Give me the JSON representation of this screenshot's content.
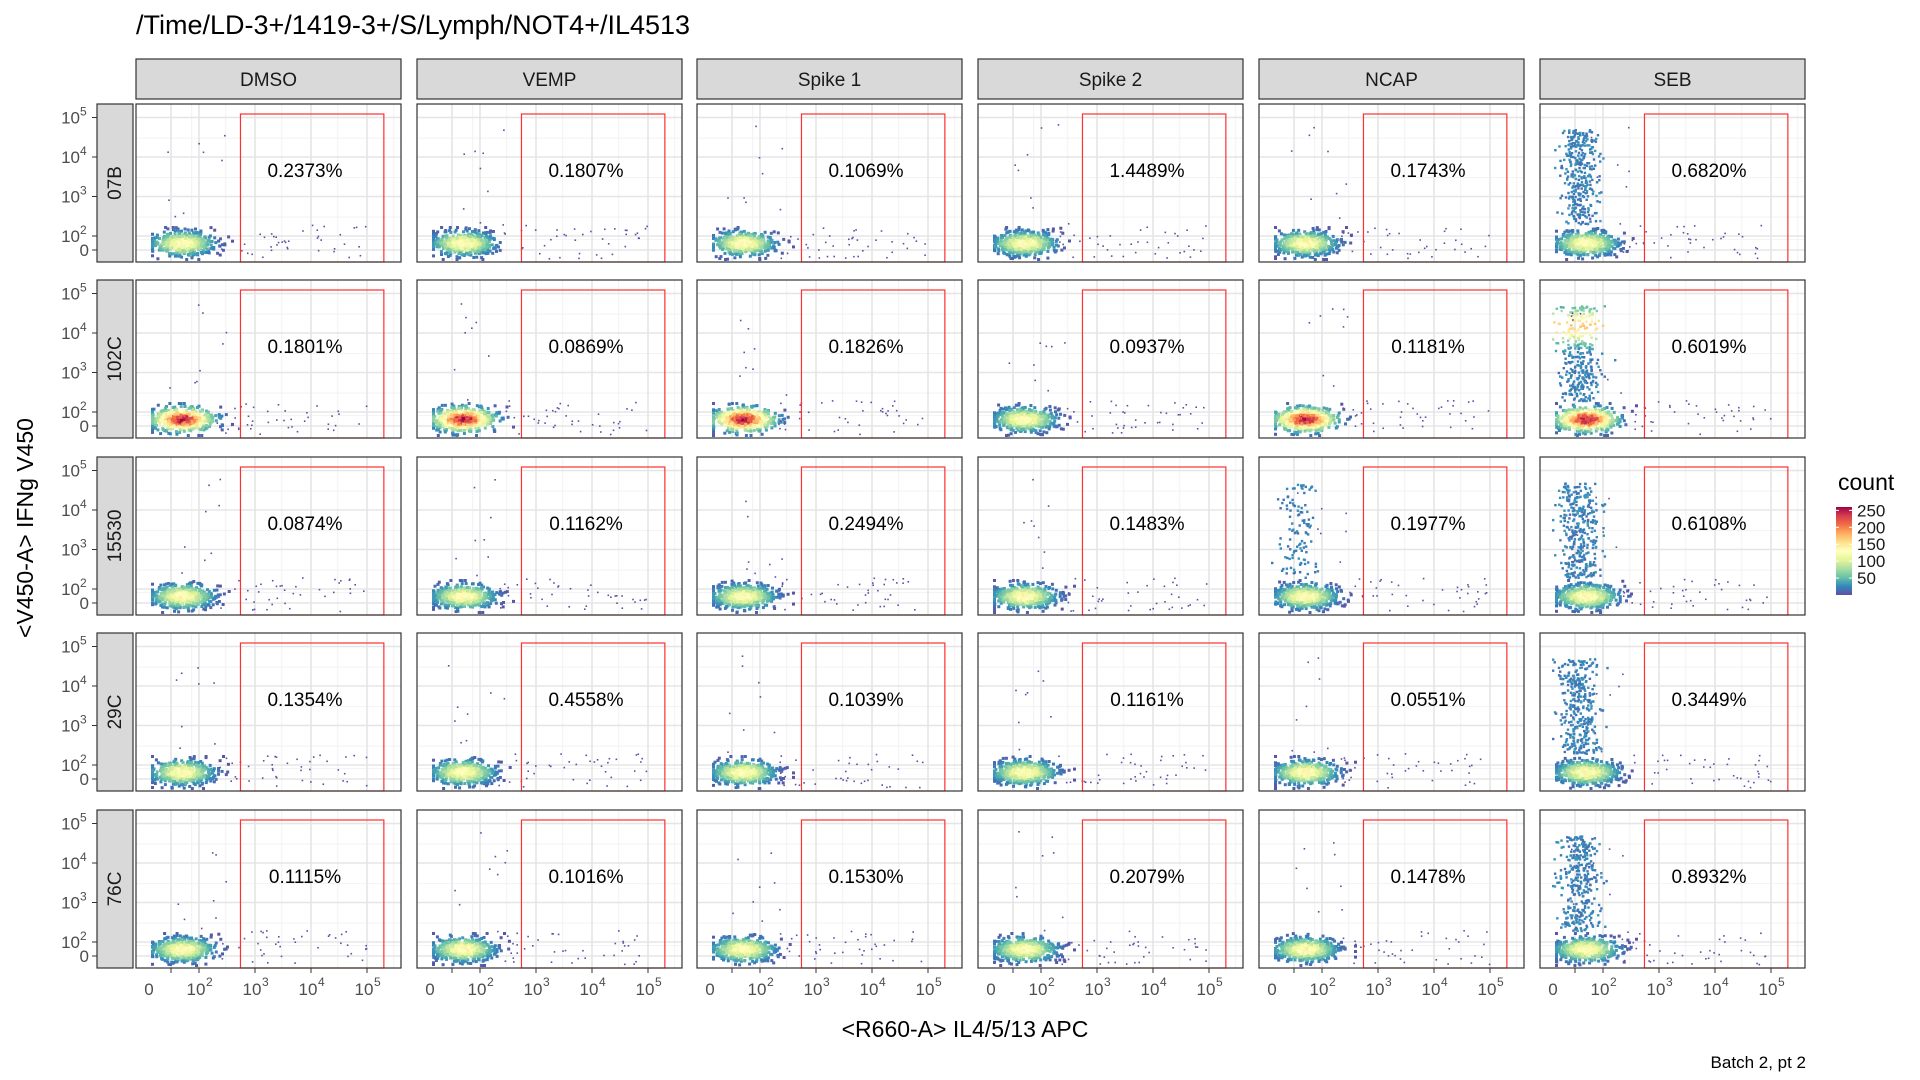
{
  "chart_data": {
    "type": "heatmap",
    "title": "/Time/LD-3+/1419-3+/S/Lymph/NOT4+/IL4513",
    "xlabel": "<R660-A> IL4/5/13 APC",
    "ylabel": "<V450-A> IFNg V450",
    "caption": "Batch 2, pt 2",
    "columns": [
      "DMSO",
      "VEMP",
      "Spike 1",
      "Spike 2",
      "NCAP",
      "SEB"
    ],
    "rows": [
      "07B",
      "102C",
      "15530",
      "29C",
      "76C"
    ],
    "x_ticks": [
      "0",
      "10",
      "10",
      "10",
      "10"
    ],
    "x_tick_exps": [
      "",
      "2",
      "3",
      "4",
      "5"
    ],
    "y_ticks": [
      "0",
      "10",
      "10",
      "10",
      "10"
    ],
    "y_tick_exps": [
      "",
      "2",
      "3",
      "4",
      "5"
    ],
    "gate_percentages": [
      [
        "0.2373%",
        "0.1807%",
        "0.1069%",
        "1.4489%",
        "0.1743%",
        "0.6820%"
      ],
      [
        "0.1801%",
        "0.0869%",
        "0.1826%",
        "0.0937%",
        "0.1181%",
        "0.6019%"
      ],
      [
        "0.0874%",
        "0.1162%",
        "0.2494%",
        "0.1483%",
        "0.1977%",
        "0.6108%"
      ],
      [
        "0.1354%",
        "0.4558%",
        "0.1039%",
        "0.1161%",
        "0.0551%",
        "0.3449%"
      ],
      [
        "0.1115%",
        "0.1016%",
        "0.1530%",
        "0.2079%",
        "0.1478%",
        "0.8932%"
      ]
    ],
    "legend": {
      "title": "count",
      "ticks": [
        50,
        100,
        150,
        200,
        250
      ],
      "range": [
        0,
        260
      ],
      "colors": [
        "#5E4FA2",
        "#3288BD",
        "#66C2A5",
        "#ABDDA4",
        "#E6F598",
        "#FFFFBF",
        "#FEE08B",
        "#FDAE61",
        "#F46D43",
        "#D53E4F",
        "#9E0142"
      ]
    },
    "grid": true,
    "gate_color": "#FF3030"
  }
}
